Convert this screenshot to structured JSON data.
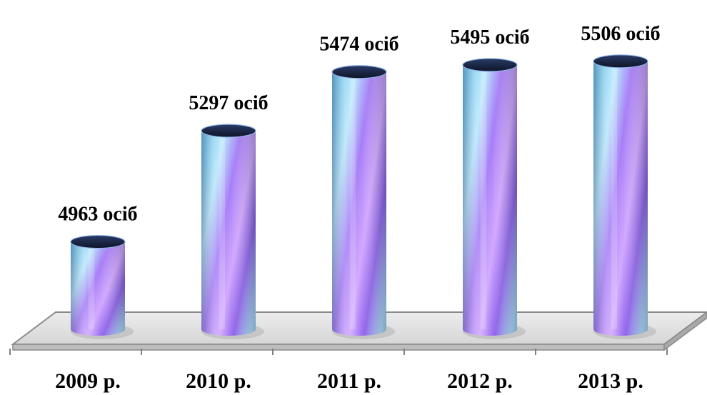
{
  "chart_data": {
    "type": "bar",
    "categories": [
      "2009 р.",
      "2010 р.",
      "2011 р.",
      "2012 р.",
      "2013 р."
    ],
    "series": [
      {
        "values": [
          4963,
          5297,
          5474,
          5495,
          5506
        ],
        "data_labels": [
          "4963 осіб",
          "5297 осіб",
          "5474 осіб",
          "5495 осіб",
          "5506 осіб"
        ]
      }
    ],
    "title": "",
    "xlabel": "",
    "ylabel": "",
    "ylim": [
      4700,
      5540
    ],
    "grid": false,
    "legend": "none",
    "colors": {
      "bar_light": "#9ad8f2",
      "bar_mid": "#a77df7",
      "bar_dark": "#6a3fd6",
      "bar_top": "#1f2a4a",
      "floor": "#e2e2e2",
      "floor_edge": "#7f7f7f"
    }
  }
}
